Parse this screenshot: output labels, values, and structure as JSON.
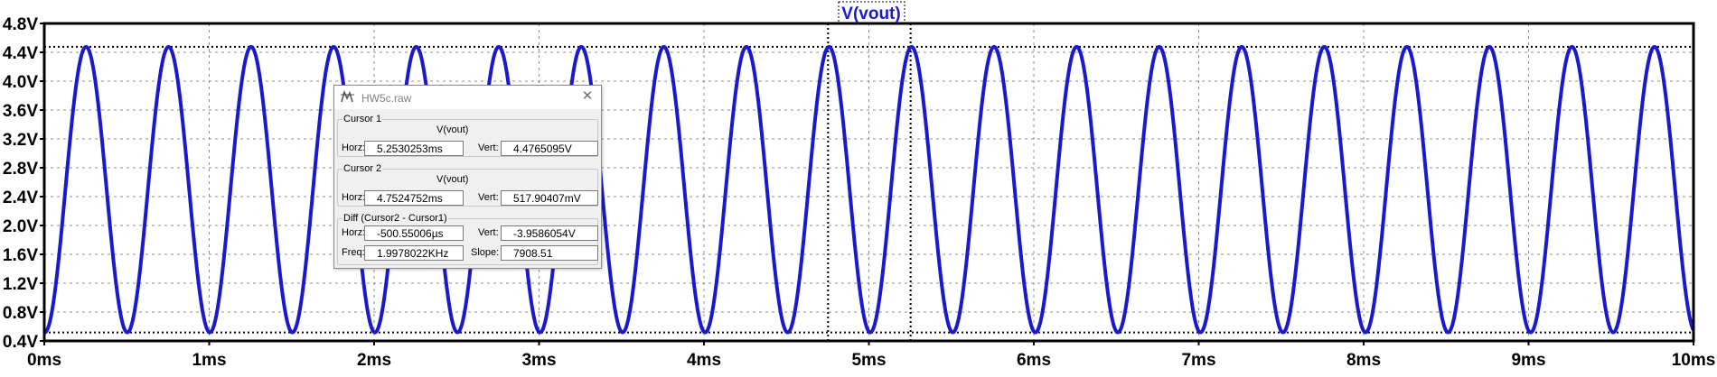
{
  "plot": {
    "trace_title": "V(vout)",
    "trace_color": "#1a1acc",
    "y_ticks": [
      "0.4V",
      "0.8V",
      "1.2V",
      "1.6V",
      "2.0V",
      "2.4V",
      "2.8V",
      "3.2V",
      "3.6V",
      "4.0V",
      "4.4V",
      "4.8V"
    ],
    "x_ticks": [
      "0ms",
      "1ms",
      "2ms",
      "3ms",
      "4ms",
      "5ms",
      "6ms",
      "7ms",
      "8ms",
      "9ms",
      "10ms"
    ]
  },
  "chart_data": {
    "type": "line",
    "title": "V(vout)",
    "xlabel": "",
    "ylabel": "",
    "xlim": [
      0,
      10
    ],
    "ylim": [
      0.4,
      4.8
    ],
    "x_unit": "ms",
    "y_unit": "V",
    "grid": true,
    "series": [
      {
        "name": "V(vout)",
        "waveform": "sine",
        "frequency_kHz": 1.9978,
        "offset_V": 2.497,
        "amplitude_V": 1.979,
        "peak_time_ms": 0.253
      }
    ],
    "cursors": [
      {
        "name": "Cursor 1",
        "x": 5.2530253,
        "y": 4.4765095
      },
      {
        "name": "Cursor 2",
        "x": 4.7524752,
        "y": 0.51790407
      }
    ]
  },
  "dialog": {
    "title": "HW5c.raw",
    "cursor1": {
      "label": "Cursor 1",
      "trace": "V(vout)",
      "horz_label": "Horz:",
      "horz": "5.2530253ms",
      "vert_label": "Vert:",
      "vert": "4.4765095V"
    },
    "cursor2": {
      "label": "Cursor 2",
      "trace": "V(vout)",
      "horz_label": "Horz:",
      "horz": "4.7524752ms",
      "vert_label": "Vert:",
      "vert": "517.90407mV"
    },
    "diff": {
      "label": "Diff (Cursor2 - Cursor1)",
      "horz_label": "Horz:",
      "horz": "-500.55006µs",
      "vert_label": "Vert:",
      "vert": "-3.9586054V",
      "freq_label": "Freq:",
      "freq": "1.9978022KHz",
      "slope_label": "Slope:",
      "slope": "7908.51"
    }
  }
}
